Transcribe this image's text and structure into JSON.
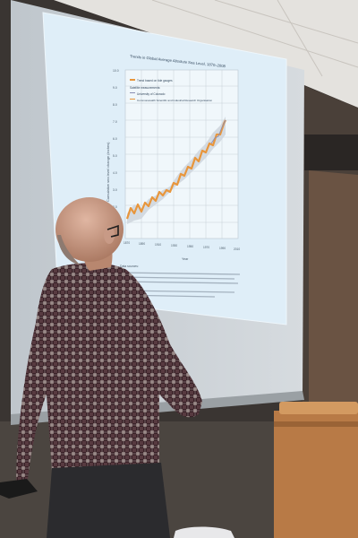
{
  "slide": {
    "title": "Trends in Global Average Absolute Sea Level, 1870–2008",
    "ylabel": "Cumulative sea level change (inches)",
    "xlabel": "Year",
    "legend": [
      "Trend based on tide gauges",
      "Satellite measurements:",
      "University of Colorado",
      "Commonwealth Scientific and Industrial Research Organisation"
    ],
    "data_sources_heading": "Data sources:",
    "chart": {
      "y_ticks": [
        "10.0",
        "9.0",
        "8.0",
        "7.0",
        "6.0",
        "5.0",
        "4.0",
        "3.0",
        "2.0",
        "1.0"
      ],
      "x_ticks": [
        "1870",
        "1890",
        "1910",
        "1930",
        "1950",
        "1970",
        "1990",
        "2010"
      ],
      "colors": {
        "trend": "#e8963c",
        "band": "#cfd6de",
        "satellite": "#8a8fb5"
      }
    }
  },
  "colors": {
    "screen": "#c9cfd4",
    "projected_slide": "#dfeef8",
    "ceiling": "#e4e2de",
    "shirt_dark": "#3a2228",
    "shirt_light": "#b7aba6",
    "skin": "#c89a86",
    "podium": "#c98a55"
  }
}
